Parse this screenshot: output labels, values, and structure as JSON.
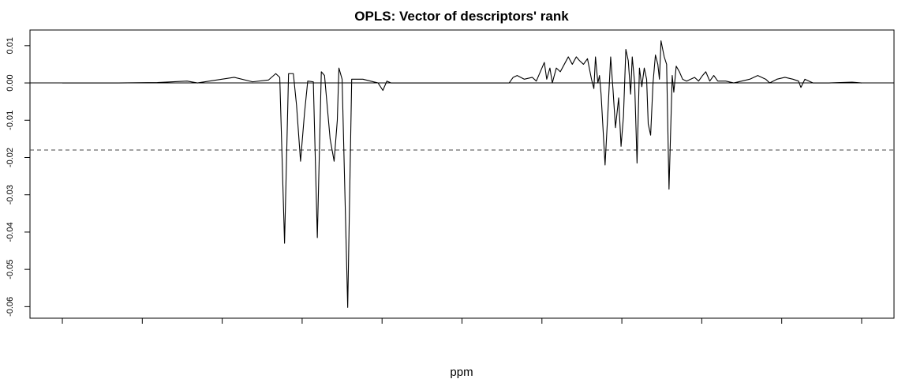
{
  "chart_data": {
    "type": "line",
    "title": "OPLS: Vector of descriptors' rank",
    "xlabel": "ppm",
    "color": "#000000",
    "x": [
      0,
      70,
      119,
      156,
      169,
      215,
      238,
      258,
      267,
      272,
      278,
      283,
      289,
      293,
      298,
      303,
      307,
      314,
      319,
      324,
      328,
      335,
      340,
      344,
      346,
      350,
      357,
      362,
      376,
      395,
      401,
      406,
      411,
      559,
      564,
      569,
      578,
      588,
      593,
      603,
      606,
      610,
      613,
      618,
      623,
      628,
      633,
      638,
      643,
      647,
      652,
      657,
      662,
      665,
      667,
      670,
      672,
      674,
      679,
      683,
      686,
      689,
      692,
      696,
      699,
      702,
      705,
      708,
      711,
      713,
      716,
      719,
      722,
      725,
      728,
      731,
      733,
      736,
      739,
      742,
      745,
      747,
      749,
      753,
      756,
      759,
      763,
      765,
      768,
      772,
      776,
      781,
      791,
      796,
      801,
      805,
      810,
      815,
      820,
      830,
      840,
      850,
      860,
      870,
      880,
      885,
      894,
      904,
      914,
      921,
      924,
      929,
      939,
      959,
      988,
      1000
    ],
    "values": [
      0,
      0,
      0.0001,
      0.0005,
      0,
      0.0015,
      0.0003,
      0.0008,
      0.0025,
      0.0015,
      -0.043,
      0.0025,
      0.0025,
      -0.006,
      -0.021,
      -0.008,
      0.0005,
      0.0003,
      -0.0415,
      0.003,
      0.002,
      -0.015,
      -0.021,
      -0.01,
      0.004,
      0.001,
      -0.0602,
      0.001,
      0.001,
      0,
      -0.002,
      0.0005,
      0,
      0,
      0.0015,
      0.002,
      0.001,
      0.0015,
      0.0005,
      0.0055,
      0.001,
      0.004,
      0,
      0.004,
      0.003,
      0.005,
      0.007,
      0.005,
      0.007,
      0.006,
      0.005,
      0.0065,
      0.001,
      -0.0015,
      0.007,
      0,
      0.002,
      -0.003,
      -0.022,
      -0.006,
      0.007,
      -0.002,
      -0.012,
      -0.004,
      -0.017,
      -0.009,
      0.009,
      0.006,
      -0.003,
      0.007,
      0,
      -0.0215,
      0.004,
      -0.001,
      0.004,
      0.001,
      -0.011,
      -0.014,
      0,
      0.0075,
      0.005,
      0.001,
      0.0113,
      0.007,
      0.005,
      -0.0285,
      0.002,
      -0.0025,
      0.0045,
      0.003,
      0.001,
      0.0005,
      0.0015,
      0.0005,
      0.002,
      0.003,
      0.0005,
      0.002,
      0.0005,
      0.0005,
      0,
      0.0005,
      0.001,
      0.002,
      0.001,
      0,
      0.001,
      0.0015,
      0.001,
      0.0005,
      -0.0012,
      0.001,
      0,
      0,
      0.0002,
      0
    ],
    "xlim": [
      -40.5,
      1040.5
    ],
    "xticks": [
      0,
      100,
      200,
      300,
      400,
      500,
      600,
      700,
      800,
      900,
      1000
    ],
    "ylim": [
      -0.0631,
      0.0142
    ],
    "yticks": [
      0.01,
      {
        "value": 0,
        "label": "0.00"
      },
      -0.01,
      -0.02,
      -0.03,
      -0.04,
      -0.05,
      -0.06
    ],
    "reference_lines": [
      {
        "value": 0,
        "style": "solid"
      },
      {
        "value": -0.018,
        "style": "dashed"
      }
    ]
  }
}
